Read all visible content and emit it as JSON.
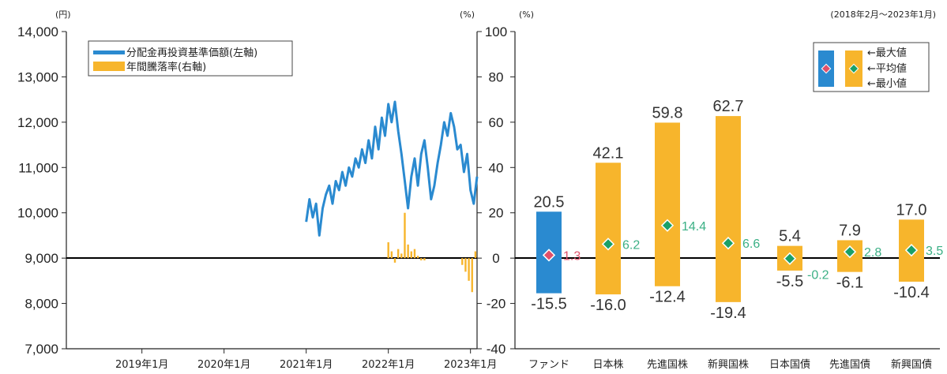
{
  "period_note": "(2018年2月～2023年1月)",
  "chart_data": [
    {
      "type": "line",
      "left_unit": "(円)",
      "right_unit": "(%)",
      "ylim_left": [
        7000,
        14000
      ],
      "yticks_left": [
        "14,000",
        "13,000",
        "12,000",
        "11,000",
        "10,000",
        "9,000",
        "8,000",
        "7,000"
      ],
      "ylim_right": [
        -40,
        100
      ],
      "x_ticks": [
        "2019年1月",
        "2020年1月",
        "2021年1月",
        "2022年1月",
        "2023年1月"
      ],
      "legend": [
        "分配金再投資基準価額(左軸)",
        "年間騰落率(右軸)"
      ],
      "colors": {
        "nav": "#2a8ad0",
        "return": "#f7b52c"
      },
      "series": [
        {
          "name": "分配金再投資基準価額(左軸)",
          "axis": "left",
          "x": [
            2021.0,
            2021.04,
            2021.08,
            2021.12,
            2021.16,
            2021.2,
            2021.24,
            2021.28,
            2021.32,
            2021.36,
            2021.4,
            2021.44,
            2021.48,
            2021.52,
            2021.56,
            2021.6,
            2021.64,
            2021.68,
            2021.72,
            2021.76,
            2021.8,
            2021.84,
            2021.88,
            2021.92,
            2021.96,
            2022.0,
            2022.04,
            2022.08,
            2022.12,
            2022.16,
            2022.2,
            2022.24,
            2022.28,
            2022.32,
            2022.36,
            2022.4,
            2022.44,
            2022.48,
            2022.52,
            2022.56,
            2022.6,
            2022.64,
            2022.68,
            2022.72,
            2022.76,
            2022.8,
            2022.84,
            2022.88,
            2022.92,
            2022.96,
            2023.0,
            2023.04,
            2023.08
          ],
          "values": [
            9800,
            10300,
            9900,
            10200,
            9500,
            10100,
            10400,
            10600,
            10200,
            10700,
            10500,
            10900,
            10600,
            11000,
            10800,
            11200,
            11000,
            11400,
            11100,
            11600,
            11200,
            11900,
            11400,
            12100,
            11700,
            12400,
            12000,
            12450,
            11800,
            11300,
            10700,
            10100,
            10800,
            11200,
            10600,
            11300,
            11600,
            11000,
            10300,
            10600,
            11100,
            11500,
            12000,
            11700,
            12200,
            11900,
            11400,
            11500,
            10900,
            11300,
            10500,
            10200,
            10800
          ]
        },
        {
          "name": "年間騰落率(右軸)",
          "axis": "right",
          "x": [
            2022.0,
            2022.04,
            2022.08,
            2022.12,
            2022.16,
            2022.2,
            2022.24,
            2022.28,
            2022.32,
            2022.36,
            2022.4,
            2022.44,
            2022.9,
            2022.94,
            2022.98,
            2023.02,
            2023.06
          ],
          "values": [
            7,
            3,
            -2,
            4,
            2,
            20,
            6,
            3,
            4,
            1,
            -1,
            -1,
            -3,
            -6,
            -10,
            -15,
            3
          ]
        }
      ]
    },
    {
      "type": "bar",
      "unit": "(%)",
      "ylim": [
        -40,
        100
      ],
      "yticks": [
        "100",
        "80",
        "60",
        "40",
        "20",
        "0",
        "-20",
        "-40"
      ],
      "categories": [
        "ファンド",
        "日本株",
        "先進国株",
        "新興国株",
        "日本国債",
        "先進国債",
        "新興国債"
      ],
      "max": [
        20.5,
        42.1,
        59.8,
        62.7,
        5.4,
        7.9,
        17.0
      ],
      "avg": [
        1.3,
        6.2,
        14.4,
        6.6,
        -0.2,
        2.8,
        3.5
      ],
      "min": [
        -15.5,
        -16.0,
        -12.4,
        -19.4,
        -5.5,
        -6.1,
        -10.4
      ],
      "max_labels": [
        "20.5",
        "42.1",
        "59.8",
        "62.7",
        "5.4",
        "7.9",
        "17.0"
      ],
      "avg_labels": [
        "1.3",
        "6.2",
        "14.4",
        "6.6",
        "-0.2",
        "2.8",
        "3.5"
      ],
      "min_labels": [
        "-15.5",
        "-16.0",
        "-12.4",
        "-19.4",
        "-5.5",
        "-6.1",
        "-10.4"
      ],
      "legend": [
        "最大値",
        "平均値",
        "最小値"
      ],
      "colors": {
        "fund": "#2a8ad0",
        "asset": "#f7b52c",
        "fund_avg_marker": "#e0506a",
        "asset_avg_marker": "#1aa068",
        "fund_avg_text": "#e0506a",
        "asset_avg_text": "#3bb085",
        "fund_value_text": "#2a8ad0"
      }
    }
  ]
}
